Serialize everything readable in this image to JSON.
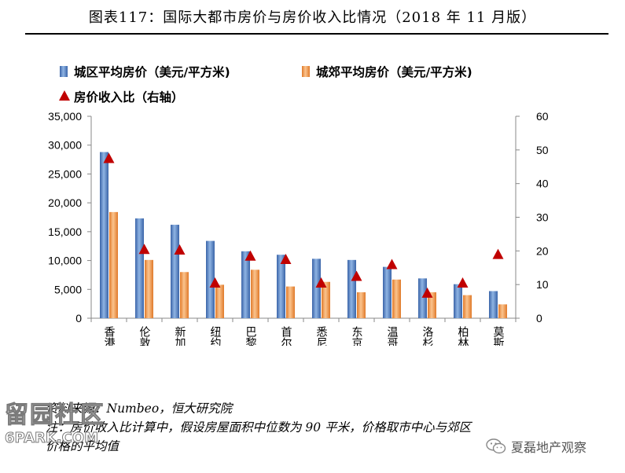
{
  "header": {
    "title": "图表117：国际大都市房价与房价收入比情况（2018 年 11 月版）"
  },
  "notes": {
    "source": "资料来源：Numbeo，恒大研究院",
    "note_line1": "注：房价收入比计算中，假设房屋面积中位数为 90 平米，价格取市中心与郊区",
    "note_line2": "价格的平均值"
  },
  "watermarks": {
    "left_cn": "留园社区",
    "left_en": "6PARK.COM",
    "right": "夏磊地产观察",
    "right_icon": "wechat-icon"
  },
  "chart_data": {
    "type": "bar",
    "categories": [
      "香港",
      "伦敦",
      "新加坡",
      "纽约",
      "巴黎",
      "首尔",
      "悉尼",
      "东京",
      "温哥华",
      "洛杉矶",
      "柏林",
      "莫斯科"
    ],
    "series": [
      {
        "name": "城区平均房价（美元/平方米)",
        "type": "bar",
        "axis": "left",
        "color": "#4f81bd",
        "values": [
          28800,
          17300,
          16200,
          13400,
          11600,
          11000,
          10300,
          10100,
          8900,
          6900,
          5900,
          4700
        ]
      },
      {
        "name": "城郊平均房价（美元/平方米)",
        "type": "bar",
        "axis": "left",
        "color": "#f79646",
        "values": [
          18400,
          10100,
          8000,
          5800,
          8400,
          5500,
          6300,
          4500,
          6700,
          4500,
          4000,
          2400
        ]
      },
      {
        "name": "房价收入比（右轴）",
        "type": "scatter",
        "axis": "right",
        "color": "#c00000",
        "values": [
          47.5,
          20.5,
          20.3,
          10.5,
          18.5,
          17.5,
          10.5,
          12.5,
          16.0,
          7.5,
          10.5,
          19.0
        ]
      }
    ],
    "y_left": {
      "min": 0,
      "max": 35000,
      "step": 5000,
      "tick_labels": [
        "0",
        "5,000",
        "10,000",
        "15,000",
        "20,000",
        "25,000",
        "30,000",
        "35,000"
      ]
    },
    "y_right": {
      "min": 0,
      "max": 60,
      "step": 10,
      "tick_labels": [
        "0",
        "10",
        "20",
        "30",
        "40",
        "50",
        "60"
      ]
    },
    "legend_position": "top-left",
    "grid": false
  }
}
